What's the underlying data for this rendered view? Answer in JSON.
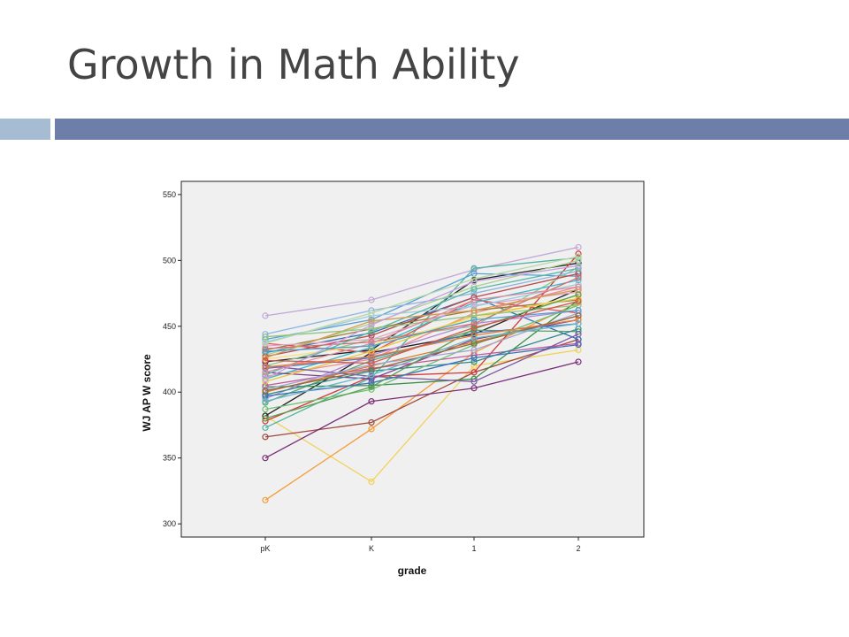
{
  "slide": {
    "title": "Growth in Math Ability",
    "accent_light": "#a5bcd2",
    "accent_dark": "#6d7ea8"
  },
  "chart_data": {
    "type": "line",
    "title": "",
    "xlabel": "grade",
    "ylabel": "WJ AP W score",
    "categories": [
      "pK",
      "K",
      "1",
      "2"
    ],
    "ylim": [
      290,
      560
    ],
    "yticks": [
      300,
      350,
      400,
      450,
      500,
      550
    ],
    "grid": false,
    "background": "#f0f0f0",
    "marker": "open-circle",
    "series": [
      {
        "color": "#c3a6d8",
        "values": [
          458,
          470,
          493,
          510
        ]
      },
      {
        "color": "#f2d25a",
        "values": [
          382,
          332,
          420,
          432
        ]
      },
      {
        "color": "#f49c3b",
        "values": [
          318,
          372,
          430,
          468
        ]
      },
      {
        "color": "#a04a3e",
        "values": [
          366,
          377,
          415,
          440
        ]
      },
      {
        "color": "#7b2e78",
        "values": [
          350,
          393,
          403,
          423
        ]
      },
      {
        "color": "#222222",
        "values": [
          382,
          430,
          444,
          478
        ]
      },
      {
        "color": "#222222",
        "values": [
          423,
          432,
          485,
          498
        ]
      },
      {
        "color": "#4fb5a0",
        "values": [
          373,
          411,
          494,
          502
        ]
      },
      {
        "color": "#57a0d3",
        "values": [
          440,
          455,
          490,
          488
        ]
      },
      {
        "color": "#d33b3b",
        "values": [
          378,
          412,
          415,
          505
        ]
      },
      {
        "color": "#3a8f4b",
        "values": [
          404,
          405,
          410,
          470
        ]
      },
      {
        "color": "#2f6cb1",
        "values": [
          430,
          445,
          472,
          440
        ]
      },
      {
        "color": "#8fc78a",
        "values": [
          420,
          440,
          450,
          495
        ]
      },
      {
        "color": "#f08c8c",
        "values": [
          412,
          425,
          460,
          480
        ]
      },
      {
        "color": "#b38ad6",
        "values": [
          395,
          428,
          452,
          462
        ]
      },
      {
        "color": "#9b7b3a",
        "values": [
          432,
          448,
          462,
          470
        ]
      },
      {
        "color": "#e05050",
        "values": [
          437,
          430,
          470,
          460
        ]
      },
      {
        "color": "#3cb8c8",
        "values": [
          410,
          434,
          468,
          485
        ]
      },
      {
        "color": "#7a3f8f",
        "values": [
          415,
          410,
          440,
          455
        ]
      },
      {
        "color": "#f7e27a",
        "values": [
          425,
          436,
          456,
          473
        ]
      },
      {
        "color": "#5aa36a",
        "values": [
          392,
          424,
          447,
          446
        ]
      },
      {
        "color": "#c05a9a",
        "values": [
          405,
          418,
          428,
          437
        ]
      },
      {
        "color": "#8db4e2",
        "values": [
          444,
          462,
          475,
          492
        ]
      },
      {
        "color": "#d67f2b",
        "values": [
          400,
          420,
          438,
          458
        ]
      },
      {
        "color": "#4a7cc0",
        "values": [
          418,
          426,
          445,
          452
        ]
      },
      {
        "color": "#a8d08d",
        "values": [
          428,
          452,
          480,
          500
        ]
      },
      {
        "color": "#e0a6c8",
        "values": [
          435,
          440,
          466,
          476
        ]
      },
      {
        "color": "#2e8b87",
        "values": [
          398,
          416,
          423,
          448
        ]
      },
      {
        "color": "#b94a4a",
        "values": [
          427,
          443,
          472,
          490
        ]
      },
      {
        "color": "#6fbf73",
        "values": [
          387,
          402,
          436,
          466
        ]
      },
      {
        "color": "#9ecae1",
        "values": [
          438,
          458,
          465,
          482
        ]
      },
      {
        "color": "#e6c83a",
        "values": [
          408,
          431,
          458,
          471
        ]
      },
      {
        "color": "#7f5aa6",
        "values": [
          420,
          412,
          408,
          444
        ]
      },
      {
        "color": "#cf6f6f",
        "values": [
          433,
          438,
          452,
          487
        ]
      },
      {
        "color": "#58b8a7",
        "values": [
          413,
          446,
          478,
          494
        ]
      },
      {
        "color": "#a3a3d6",
        "values": [
          402,
          421,
          432,
          460
        ]
      },
      {
        "color": "#d49b4e",
        "values": [
          426,
          454,
          462,
          478
        ]
      },
      {
        "color": "#3d73b9",
        "values": [
          397,
          407,
          426,
          436
        ]
      },
      {
        "color": "#93c47d",
        "values": [
          442,
          448,
          458,
          466
        ]
      },
      {
        "color": "#e08aa0",
        "values": [
          415,
          437,
          470,
          480
        ]
      },
      {
        "color": "#5a9e4f",
        "values": [
          380,
          404,
          448,
          474
        ]
      },
      {
        "color": "#c4a0e0",
        "values": [
          410,
          451,
          484,
          496
        ]
      },
      {
        "color": "#ee7d3b",
        "values": [
          419,
          427,
          443,
          455
        ]
      },
      {
        "color": "#4f9fcf",
        "values": [
          431,
          435,
          455,
          462
        ]
      },
      {
        "color": "#8e6b3e",
        "values": [
          401,
          417,
          437,
          458
        ]
      },
      {
        "color": "#b6d7a8",
        "values": [
          437,
          460,
          486,
          503
        ]
      },
      {
        "color": "#d9534f",
        "values": [
          424,
          422,
          449,
          469
        ]
      },
      {
        "color": "#6ab7c9",
        "values": [
          393,
          413,
          441,
          452
        ]
      }
    ]
  }
}
